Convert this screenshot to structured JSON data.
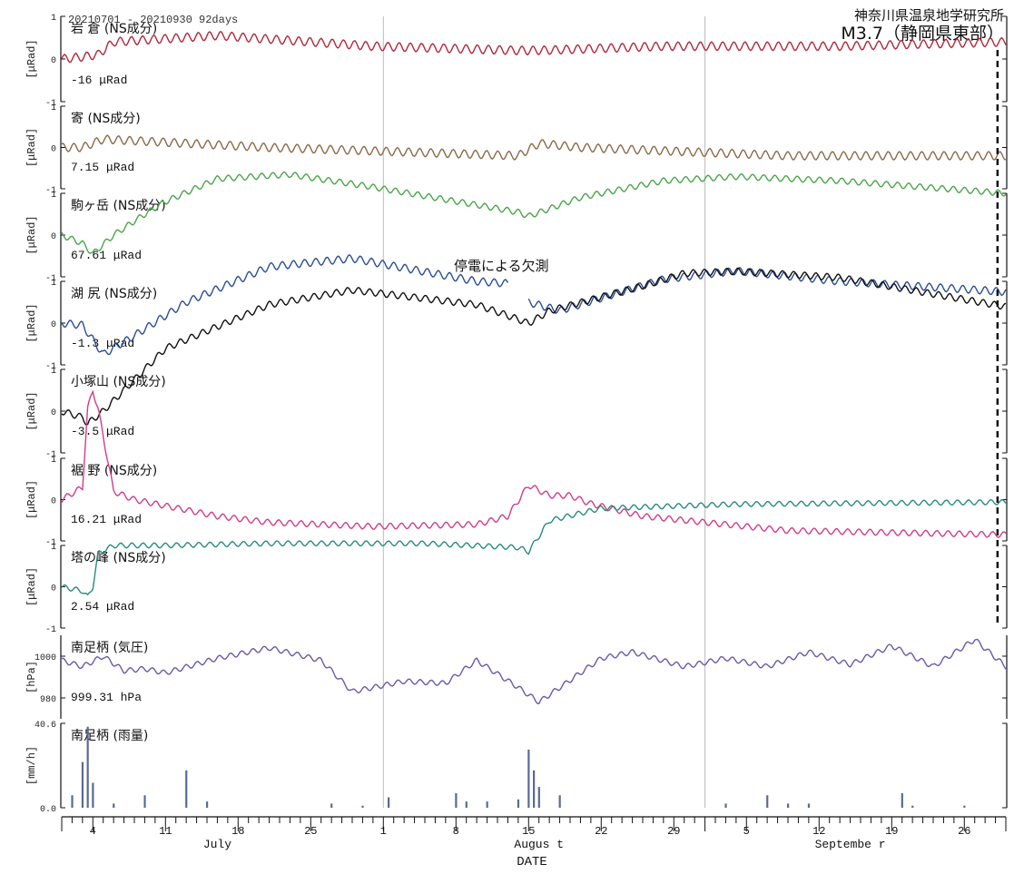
{
  "header": {
    "period": "20210701 - 20210930 92days",
    "institute": "神奈川県温泉地学研究所",
    "event": "M3.7（静岡県東部）"
  },
  "annotation": {
    "outage": "停電による欠測"
  },
  "axis": {
    "title": "DATE",
    "start": "2021-07-01",
    "end": "2021-09-30",
    "days": 92,
    "ticks": [
      {
        "label": "4",
        "day": 3
      },
      {
        "label": "11",
        "day": 10
      },
      {
        "label": "18",
        "day": 17
      },
      {
        "label": "25",
        "day": 24
      },
      {
        "label": "1",
        "day": 31
      },
      {
        "label": "8",
        "day": 38
      },
      {
        "label": "15",
        "day": 45
      },
      {
        "label": "22",
        "day": 52
      },
      {
        "label": "29",
        "day": 59
      },
      {
        "label": "5",
        "day": 66
      },
      {
        "label": "12",
        "day": 73
      },
      {
        "label": "19",
        "day": 80
      },
      {
        "label": "26",
        "day": 87
      }
    ],
    "months": [
      {
        "label": "July",
        "day": 15
      },
      {
        "label": "Augus t",
        "day": 46
      },
      {
        "label": "Septembe r",
        "day": 76
      }
    ],
    "month_boundaries": [
      31,
      62
    ],
    "event_day": 90.2
  },
  "chart_data": {
    "type": "line",
    "x_range": [
      "2021-07-01",
      "2021-09-30"
    ],
    "panels": [
      {
        "name": "岩 倉 (NS成分)",
        "unit": "[μRad]",
        "ylim": [
          -1,
          1
        ],
        "yticks": [
          "1",
          "0",
          "-1"
        ],
        "offset": "-16 μRad",
        "color": "#b0283c",
        "keypoints": [
          [
            0,
            0
          ],
          [
            2,
            0.05
          ],
          [
            3.5,
            0.1
          ],
          [
            5,
            0.4
          ],
          [
            15,
            0.55
          ],
          [
            30,
            0.3
          ],
          [
            44,
            0.2
          ],
          [
            46,
            0.2
          ],
          [
            58,
            0.3
          ],
          [
            75,
            0.3
          ],
          [
            91,
            0.4
          ]
        ],
        "amp": 0.1
      },
      {
        "name": "寄 (NS成分)",
        "unit": "[μRad]",
        "ylim": [
          -1,
          1
        ],
        "yticks": [
          "1",
          "0",
          "-1"
        ],
        "offset": "7.15 μRad",
        "color": "#8a6a48",
        "keypoints": [
          [
            0,
            0
          ],
          [
            2,
            0
          ],
          [
            4,
            0.2
          ],
          [
            8,
            0.15
          ],
          [
            20,
            0
          ],
          [
            44,
            -0.2
          ],
          [
            46,
            0.1
          ],
          [
            50,
            0
          ],
          [
            70,
            -0.2
          ],
          [
            91,
            -0.2
          ]
        ],
        "amp": 0.1
      },
      {
        "name": "駒ヶ岳 (NS成分)",
        "unit": "[μRad]",
        "ylim": [
          -1,
          1
        ],
        "yticks": [
          "1",
          "0",
          "-1"
        ],
        "offset": "67.61 μRad",
        "color": "#4aa54a",
        "keypoints": [
          [
            0,
            0
          ],
          [
            2,
            -0.2
          ],
          [
            3,
            -0.45
          ],
          [
            5,
            0
          ],
          [
            8,
            0.5
          ],
          [
            10,
            0.8
          ],
          [
            15,
            1.35
          ],
          [
            22,
            1.45
          ],
          [
            30,
            1.15
          ],
          [
            44,
            0.55
          ],
          [
            45,
            0.45
          ],
          [
            50,
            0.9
          ],
          [
            58,
            1.3
          ],
          [
            65,
            1.4
          ],
          [
            75,
            1.3
          ],
          [
            91,
            1.0
          ]
        ],
        "amp": 0.07
      },
      {
        "name": "湖 尻 (NS成分)",
        "unit": "[μRad]",
        "ylim": [
          -1,
          1
        ],
        "yticks": [
          "1",
          "0",
          "-1"
        ],
        "offset": "-1.3 μRad",
        "color": "#2a4e96",
        "segments": [
          [
            [
              0,
              0
            ],
            [
              2,
              -0.05
            ],
            [
              4,
              -0.75
            ],
            [
              7,
              -0.3
            ],
            [
              12,
              0.5
            ],
            [
              20,
              1.35
            ],
            [
              28,
              1.55
            ],
            [
              40,
              1.0
            ],
            [
              43,
              0.95
            ]
          ],
          [
            [
              45,
              0.5
            ],
            [
              48,
              0.3
            ],
            [
              58,
              1.05
            ],
            [
              65,
              1.25
            ],
            [
              75,
              1.0
            ],
            [
              91,
              0.75
            ]
          ]
        ],
        "amp": 0.09
      },
      {
        "name": "小塚山 (NS成分)",
        "unit": "[μRad]",
        "ylim": [
          -1,
          1
        ],
        "yticks": [
          "1",
          "0",
          "-1"
        ],
        "offset": "-3.5 μRad",
        "color": "#111111",
        "span_up": 3,
        "keypoints": [
          [
            0,
            0
          ],
          [
            2,
            -0.15
          ],
          [
            2.5,
            -0.3
          ],
          [
            4,
            0
          ],
          [
            10,
            1.5
          ],
          [
            20,
            2.55
          ],
          [
            28,
            2.9
          ],
          [
            40,
            2.55
          ],
          [
            44,
            2.2
          ],
          [
            45,
            2.1
          ],
          [
            47,
            2.4
          ],
          [
            56,
            3.0
          ],
          [
            60,
            3.3
          ],
          [
            65,
            3.35
          ],
          [
            75,
            3.2
          ],
          [
            91,
            2.5
          ]
        ],
        "amp": 0.08
      },
      {
        "name": "裾 野 (NS成分)",
        "unit": "[μRad]",
        "ylim": [
          -1,
          1
        ],
        "yticks": [
          "1",
          "0",
          "-1"
        ],
        "offset": "16.21 μRad",
        "color": "#d23c8a",
        "keypoints": [
          [
            0,
            0
          ],
          [
            2,
            0.3
          ],
          [
            2.5,
            2.2
          ],
          [
            3,
            2.65
          ],
          [
            3.5,
            2.2
          ],
          [
            5,
            0.2
          ],
          [
            7,
            0
          ],
          [
            15,
            -0.4
          ],
          [
            20,
            -0.55
          ],
          [
            30,
            -0.65
          ],
          [
            40,
            -0.6
          ],
          [
            43,
            -0.4
          ],
          [
            45,
            0.35
          ],
          [
            47,
            0.1
          ],
          [
            49,
            0.1
          ],
          [
            51,
            -0.1
          ],
          [
            56,
            -0.4
          ],
          [
            70,
            -0.75
          ],
          [
            91,
            -0.85
          ]
        ],
        "amp": 0.07
      },
      {
        "name": "塔の峰 (NS成分)",
        "unit": "[μRad]",
        "ylim": [
          -1,
          1
        ],
        "yticks": [
          "1",
          "0",
          "-1"
        ],
        "offset": "2.54 μRad",
        "color": "#2a8a80",
        "span_up": 1,
        "keypoints": [
          [
            0,
            0
          ],
          [
            2,
            -0.1
          ],
          [
            2.5,
            -0.25
          ],
          [
            3,
            0
          ],
          [
            3.5,
            0.8
          ],
          [
            5,
            1.0
          ],
          [
            10,
            1.0
          ],
          [
            20,
            1.05
          ],
          [
            35,
            1.05
          ],
          [
            44,
            0.95
          ],
          [
            45,
            0.85
          ],
          [
            47,
            1.6
          ],
          [
            52,
            1.9
          ],
          [
            65,
            2.0
          ],
          [
            91,
            2.05
          ]
        ],
        "amp": 0.06
      },
      {
        "name": "南足柄 (気圧)",
        "unit": "[hPa]",
        "ylim": [
          970,
          1010
        ],
        "yticks": [
          "1000",
          "980"
        ],
        "offset": "999.31 hPa",
        "color": "#6a5aa8",
        "keypoints": [
          [
            0,
            998
          ],
          [
            2,
            995
          ],
          [
            4,
            1000
          ],
          [
            6,
            993
          ],
          [
            8,
            994
          ],
          [
            10,
            992
          ],
          [
            15,
            999
          ],
          [
            20,
            1004
          ],
          [
            25,
            998
          ],
          [
            28,
            983
          ],
          [
            33,
            988
          ],
          [
            37,
            987
          ],
          [
            40,
            998
          ],
          [
            44,
            985
          ],
          [
            46,
            978
          ],
          [
            48,
            985
          ],
          [
            52,
            999
          ],
          [
            55,
            1002
          ],
          [
            60,
            995
          ],
          [
            64,
            999
          ],
          [
            68,
            995
          ],
          [
            72,
            1002
          ],
          [
            76,
            996
          ],
          [
            80,
            1005
          ],
          [
            84,
            995
          ],
          [
            88,
            1008
          ],
          [
            91,
            995
          ]
        ],
        "amp": 1.2
      },
      {
        "name": "南足柄 (雨量)",
        "unit": "[mm/h]",
        "ylim": [
          0,
          40.6
        ],
        "yticks": [
          "40.6",
          "0.0"
        ],
        "color": "#5a6a96",
        "bars": true,
        "rain": [
          [
            1,
            6
          ],
          [
            2,
            22
          ],
          [
            2.5,
            39
          ],
          [
            3,
            12
          ],
          [
            5,
            2
          ],
          [
            8,
            6
          ],
          [
            12,
            18
          ],
          [
            14,
            3
          ],
          [
            26,
            2
          ],
          [
            29,
            1
          ],
          [
            31.5,
            5
          ],
          [
            38,
            7
          ],
          [
            39,
            3
          ],
          [
            41,
            3
          ],
          [
            44,
            4
          ],
          [
            45,
            28
          ],
          [
            45.5,
            18
          ],
          [
            46,
            10
          ],
          [
            48,
            6
          ],
          [
            64,
            2
          ],
          [
            68,
            6
          ],
          [
            70,
            2
          ],
          [
            72,
            2
          ],
          [
            81,
            7
          ],
          [
            82,
            1
          ],
          [
            87,
            1
          ]
        ]
      }
    ]
  }
}
